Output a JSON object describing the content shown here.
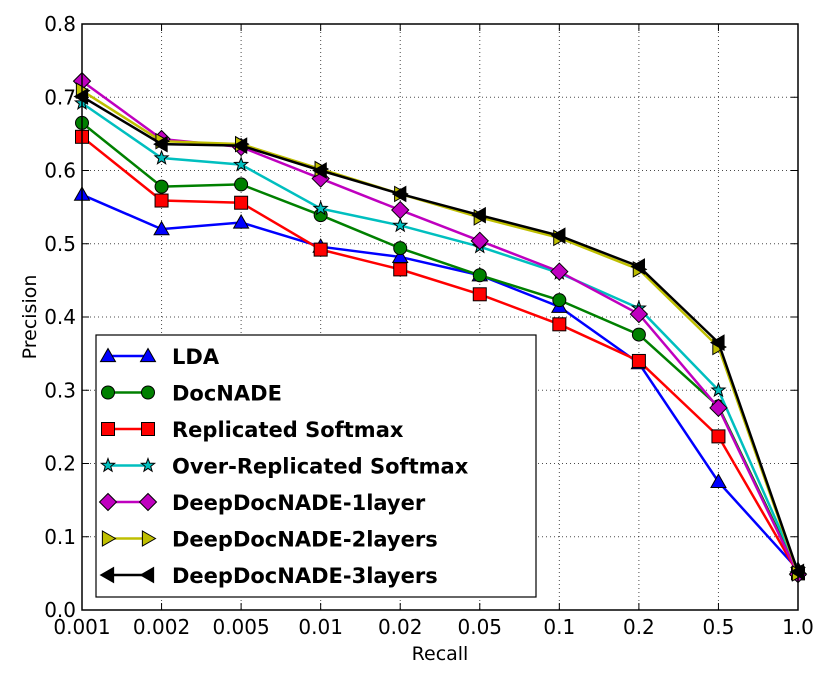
{
  "chart_data": {
    "type": "line",
    "title": "",
    "xlabel": "Recall",
    "ylabel": "Precision",
    "x": [
      "0.001",
      "0.002",
      "0.005",
      "0.01",
      "0.02",
      "0.05",
      "0.1",
      "0.2",
      "0.5",
      "1.0"
    ],
    "yticks": [
      "0.0",
      "0.1",
      "0.2",
      "0.3",
      "0.4",
      "0.5",
      "0.6",
      "0.7",
      "0.8"
    ],
    "ylim": [
      0,
      0.8
    ],
    "grid": true,
    "legend_position": "bottom-left",
    "series": [
      {
        "name": "LDA",
        "color": "#0000ff",
        "marker": "triangle-up",
        "values": [
          0.567,
          0.52,
          0.529,
          0.496,
          0.482,
          0.457,
          0.414,
          0.337,
          0.175,
          0.055
        ]
      },
      {
        "name": "DocNADE",
        "color": "#008000",
        "marker": "circle",
        "values": [
          0.665,
          0.578,
          0.581,
          0.539,
          0.494,
          0.457,
          0.423,
          0.376,
          0.278,
          0.052
        ]
      },
      {
        "name": "Replicated Softmax",
        "color": "#ff0000",
        "marker": "square",
        "values": [
          0.646,
          0.559,
          0.556,
          0.492,
          0.465,
          0.431,
          0.39,
          0.34,
          0.237,
          0.05
        ]
      },
      {
        "name": "Over-Replicated Softmax",
        "color": "#00bfbf",
        "marker": "star",
        "values": [
          0.692,
          0.617,
          0.608,
          0.548,
          0.525,
          0.496,
          0.46,
          0.412,
          0.3,
          0.055
        ]
      },
      {
        "name": "DeepDocNADE-1layer",
        "color": "#bf00bf",
        "marker": "diamond",
        "values": [
          0.722,
          0.643,
          0.632,
          0.589,
          0.546,
          0.504,
          0.462,
          0.404,
          0.276,
          0.049
        ]
      },
      {
        "name": "DeepDocNADE-2layers",
        "color": "#bfbf00",
        "marker": "triangle-right",
        "values": [
          0.709,
          0.64,
          0.636,
          0.602,
          0.568,
          0.536,
          0.508,
          0.465,
          0.359,
          0.05
        ]
      },
      {
        "name": "DeepDocNADE-3layers",
        "color": "#000000",
        "marker": "triangle-left",
        "values": [
          0.701,
          0.636,
          0.634,
          0.6,
          0.568,
          0.539,
          0.511,
          0.469,
          0.365,
          0.052
        ]
      }
    ]
  }
}
